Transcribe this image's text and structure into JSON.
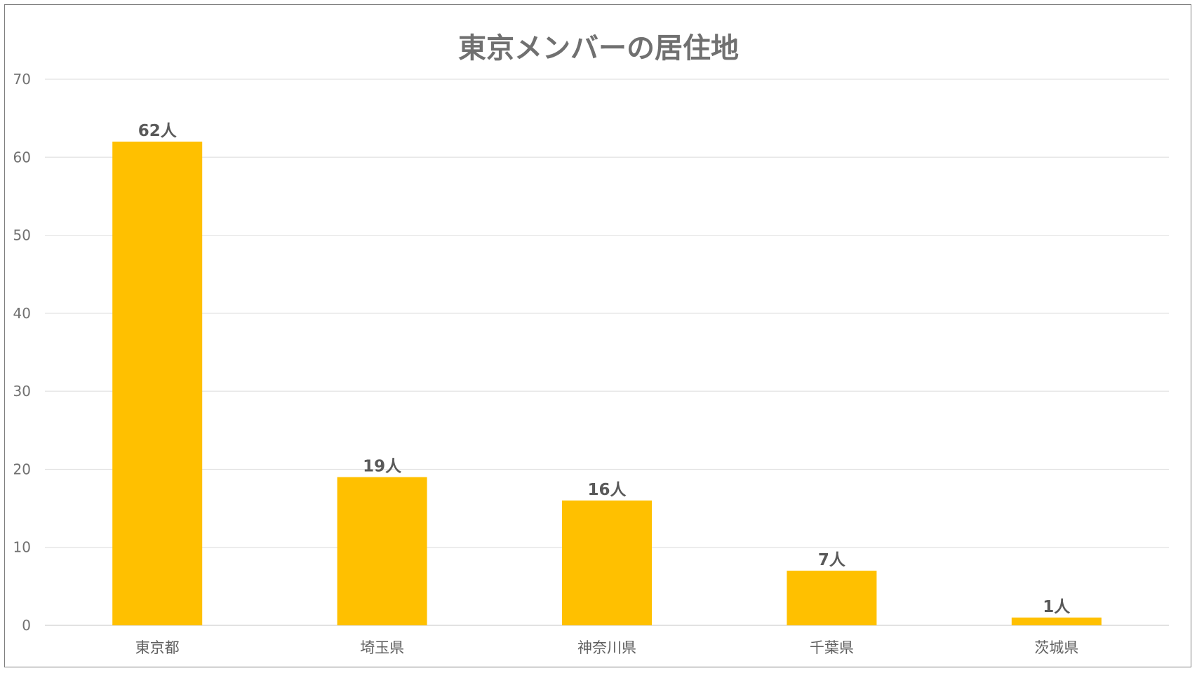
{
  "chart_data": {
    "type": "bar",
    "title": "東京メンバーの居住地",
    "categories": [
      "東京都",
      "埼玉県",
      "神奈川県",
      "千葉県",
      "茨城県"
    ],
    "values": [
      62,
      19,
      16,
      7,
      1
    ],
    "data_labels": [
      "62人",
      "19人",
      "16人",
      "7人",
      "1人"
    ],
    "ylim": [
      0,
      70
    ],
    "yticks": [
      "0",
      "10",
      "20",
      "30",
      "40",
      "50",
      "60",
      "70"
    ],
    "xlabel": "",
    "ylabel": "",
    "grid": true,
    "legend": "none",
    "bar_color": "#ffc000"
  }
}
